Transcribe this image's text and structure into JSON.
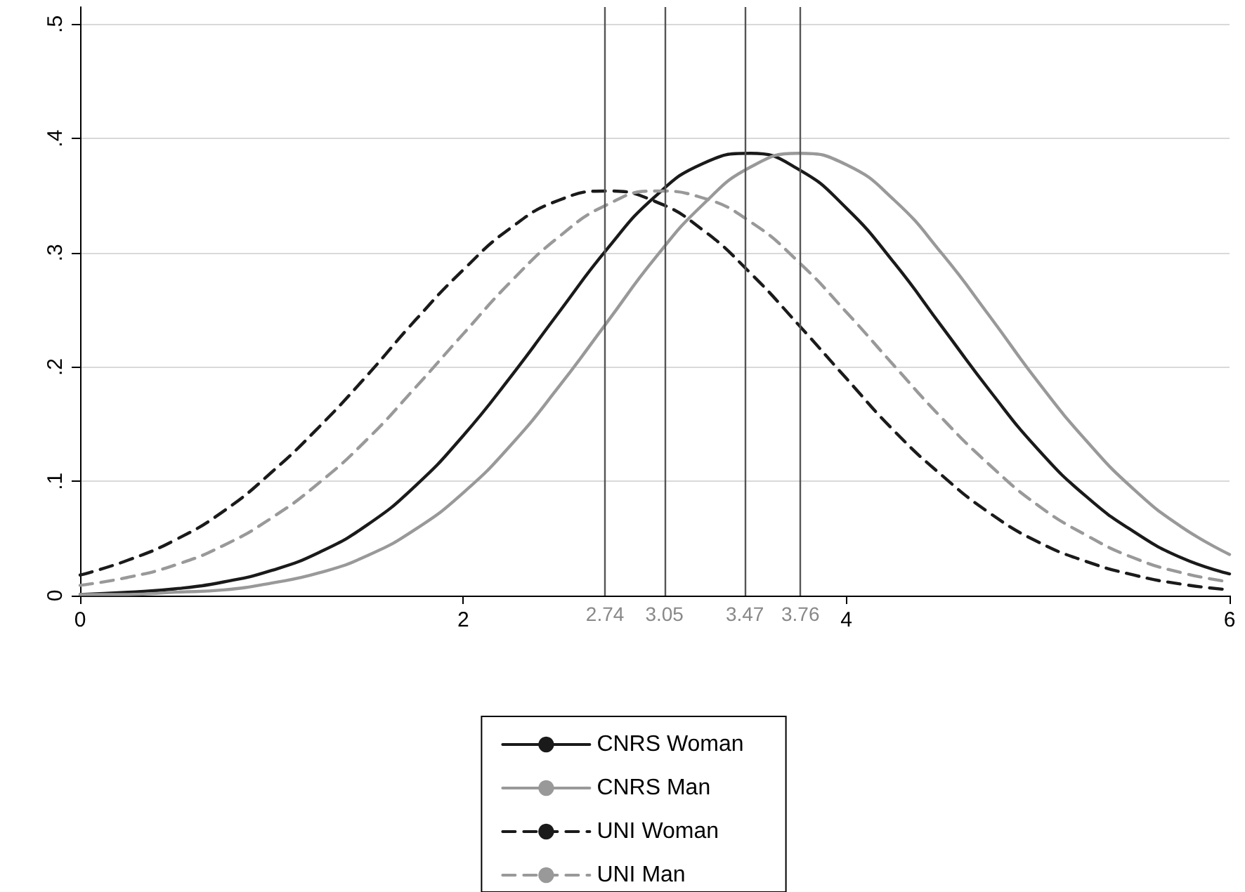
{
  "chart_data": {
    "type": "line",
    "x": [
      0,
      0.25,
      0.5,
      0.75,
      1,
      1.25,
      1.5,
      1.75,
      2,
      2.25,
      2.5,
      2.75,
      3,
      3.25,
      3.5,
      3.75,
      4,
      4.25,
      4.5,
      4.75,
      5,
      5.25,
      5.5,
      5.75,
      6
    ],
    "series": [
      {
        "name": "CNRS Woman",
        "color": "#1a1a1a",
        "line_style": "solid",
        "values": [
          0.001,
          0.003,
          0.006,
          0.012,
          0.022,
          0.038,
          0.062,
          0.096,
          0.14,
          0.192,
          0.248,
          0.303,
          0.349,
          0.378,
          0.387,
          0.373,
          0.339,
          0.291,
          0.235,
          0.179,
          0.128,
          0.087,
          0.056,
          0.033,
          0.019
        ]
      },
      {
        "name": "CNRS Man",
        "color": "#999999",
        "line_style": "solid",
        "values": [
          0.001,
          0.001,
          0.003,
          0.005,
          0.011,
          0.02,
          0.035,
          0.058,
          0.09,
          0.132,
          0.183,
          0.239,
          0.295,
          0.342,
          0.375,
          0.387,
          0.377,
          0.346,
          0.299,
          0.244,
          0.187,
          0.136,
          0.093,
          0.06,
          0.036
        ]
      },
      {
        "name": "UNI Woman",
        "color": "#1a1a1a",
        "line_style": "dashed",
        "values": [
          0.018,
          0.031,
          0.049,
          0.074,
          0.108,
          0.148,
          0.193,
          0.241,
          0.285,
          0.322,
          0.346,
          0.354,
          0.345,
          0.32,
          0.282,
          0.237,
          0.19,
          0.144,
          0.105,
          0.072,
          0.047,
          0.03,
          0.018,
          0.01,
          0.005
        ]
      },
      {
        "name": "UNI Man",
        "color": "#999999",
        "line_style": "dashed",
        "values": [
          0.009,
          0.016,
          0.027,
          0.044,
          0.068,
          0.099,
          0.137,
          0.182,
          0.229,
          0.275,
          0.314,
          0.342,
          0.354,
          0.348,
          0.327,
          0.292,
          0.248,
          0.201,
          0.155,
          0.114,
          0.079,
          0.053,
          0.033,
          0.02,
          0.012
        ]
      }
    ],
    "xlim": [
      0,
      6
    ],
    "xticks": [
      0,
      2,
      4,
      6
    ],
    "ylim": [
      0,
      0.515
    ],
    "yticks": [
      0,
      {
        "value": 0.1,
        "label": ".1"
      },
      {
        "value": 0.2,
        "label": ".2"
      },
      {
        "value": 0.3,
        "label": ".3"
      },
      {
        "value": 0.4,
        "label": ".4"
      },
      {
        "value": 0.5,
        "label": ".5"
      }
    ],
    "ref_lines": [
      {
        "axis": "x",
        "value": 2.74,
        "label": "2.74",
        "color": "#555555"
      },
      {
        "axis": "x",
        "value": 3.05,
        "label": "3.05",
        "color": "#555555"
      },
      {
        "axis": "x",
        "value": 3.47,
        "label": "3.47",
        "color": "#555555"
      },
      {
        "axis": "x",
        "value": 3.76,
        "label": "3.76",
        "color": "#555555"
      }
    ],
    "grid": "y",
    "legend": "bottom",
    "marker": "none"
  }
}
